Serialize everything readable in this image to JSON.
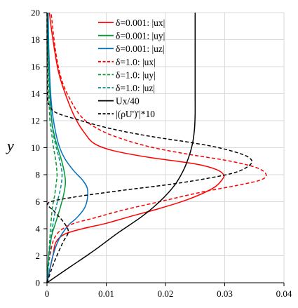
{
  "chart_data": {
    "type": "line",
    "xlabel": "",
    "ylabel": "y",
    "xlim": [
      0,
      0.04
    ],
    "ylim": [
      0,
      20
    ],
    "x_ticks": [
      "0",
      "0.01",
      "0.02",
      "0.03",
      "0.04"
    ],
    "y_ticks": [
      "0",
      "2",
      "4",
      "6",
      "8",
      "10",
      "12",
      "14",
      "16",
      "18",
      "20"
    ],
    "grid": true,
    "legend_position": "top-center",
    "series": [
      {
        "name": "δ=0.001: |ux|",
        "color": "#ff0000",
        "dash": "solid",
        "points": [
          [
            0,
            0
          ],
          [
            0.0005,
            1
          ],
          [
            0.001,
            2
          ],
          [
            0.0015,
            3
          ],
          [
            0.003,
            3.6
          ],
          [
            0.006,
            4.0
          ],
          [
            0.01,
            4.4
          ],
          [
            0.014,
            4.9
          ],
          [
            0.019,
            5.5
          ],
          [
            0.024,
            6.2
          ],
          [
            0.028,
            7.0
          ],
          [
            0.0295,
            7.6
          ],
          [
            0.0298,
            8.0
          ],
          [
            0.0285,
            8.4
          ],
          [
            0.025,
            8.8
          ],
          [
            0.017,
            9.3
          ],
          [
            0.011,
            9.8
          ],
          [
            0.008,
            10.3
          ],
          [
            0.0065,
            11.0
          ],
          [
            0.005,
            12.0
          ],
          [
            0.0035,
            13.5
          ],
          [
            0.002,
            15.5
          ],
          [
            0.001,
            18
          ],
          [
            0.0004,
            20
          ]
        ]
      },
      {
        "name": "δ=0.001: |uy|",
        "color": "#009933",
        "dash": "solid",
        "points": [
          [
            0,
            0
          ],
          [
            0.0003,
            2
          ],
          [
            0.0008,
            3.5
          ],
          [
            0.0015,
            4.5
          ],
          [
            0.0022,
            5.5
          ],
          [
            0.0028,
            6.5
          ],
          [
            0.0031,
            7.3
          ],
          [
            0.003,
            8
          ],
          [
            0.0025,
            9
          ],
          [
            0.0018,
            10
          ],
          [
            0.0012,
            11
          ],
          [
            0.0008,
            12
          ],
          [
            0.0005,
            14
          ],
          [
            0.0003,
            16
          ],
          [
            0.0002,
            18
          ],
          [
            0.0001,
            20
          ]
        ]
      },
      {
        "name": "δ=0.001: |uz|",
        "color": "#0070c0",
        "dash": "solid",
        "points": [
          [
            0,
            0
          ],
          [
            0.001,
            2
          ],
          [
            0.002,
            3.2
          ],
          [
            0.0035,
            4.2
          ],
          [
            0.005,
            4.8
          ],
          [
            0.0063,
            5.5
          ],
          [
            0.0068,
            6.2
          ],
          [
            0.0068,
            7.0
          ],
          [
            0.006,
            7.6
          ],
          [
            0.0045,
            8.3
          ],
          [
            0.003,
            9.2
          ],
          [
            0.002,
            10.2
          ],
          [
            0.0013,
            11.5
          ],
          [
            0.0008,
            13
          ],
          [
            0.0005,
            15
          ],
          [
            0.0003,
            17.5
          ],
          [
            0.0002,
            20
          ]
        ]
      },
      {
        "name": "δ=1.0: |ux|",
        "color": "#ff0000",
        "dash": "dashed",
        "points": [
          [
            0,
            0
          ],
          [
            0.0005,
            2
          ],
          [
            0.0015,
            3.5
          ],
          [
            0.004,
            4.3
          ],
          [
            0.008,
            4.8
          ],
          [
            0.013,
            5.4
          ],
          [
            0.019,
            6.0
          ],
          [
            0.026,
            6.7
          ],
          [
            0.032,
            7.2
          ],
          [
            0.036,
            7.6
          ],
          [
            0.037,
            8.0
          ],
          [
            0.0355,
            8.5
          ],
          [
            0.031,
            9.0
          ],
          [
            0.024,
            9.5
          ],
          [
            0.018,
            10.0
          ],
          [
            0.013,
            10.6
          ],
          [
            0.009,
            11.3
          ],
          [
            0.006,
            12.2
          ],
          [
            0.004,
            13.5
          ],
          [
            0.0025,
            15
          ],
          [
            0.0015,
            17
          ],
          [
            0.0007,
            20
          ]
        ]
      },
      {
        "name": "δ=1.0: |uy|",
        "color": "#009933",
        "dash": "dashed",
        "points": [
          [
            0,
            0
          ],
          [
            0.0003,
            2
          ],
          [
            0.0006,
            4
          ],
          [
            0.0009,
            5.5
          ],
          [
            0.0013,
            6.5
          ],
          [
            0.0016,
            7.5
          ],
          [
            0.0017,
            8
          ],
          [
            0.0015,
            9
          ],
          [
            0.0011,
            10
          ],
          [
            0.0008,
            11
          ],
          [
            0.0005,
            12
          ],
          [
            0.0003,
            14
          ],
          [
            0.0002,
            16
          ],
          [
            0.0001,
            18
          ],
          [
            0.0001,
            20
          ]
        ]
      },
      {
        "name": "δ=1.0: |uz|",
        "color": "#008b8b",
        "dash": "dashed",
        "points": [
          [
            0,
            0
          ],
          [
            0.0004,
            2
          ],
          [
            0.0009,
            4
          ],
          [
            0.0015,
            5.5
          ],
          [
            0.0022,
            6.8
          ],
          [
            0.0025,
            7.6
          ],
          [
            0.0025,
            8.3
          ],
          [
            0.002,
            9.3
          ],
          [
            0.0014,
            10.3
          ],
          [
            0.0009,
            11.5
          ],
          [
            0.0006,
            13
          ],
          [
            0.0004,
            15
          ],
          [
            0.0002,
            17.5
          ],
          [
            0.0001,
            20
          ]
        ]
      },
      {
        "name": "Ux/40",
        "color": "#000000",
        "dash": "solid",
        "points": [
          [
            0,
            0
          ],
          [
            0.004,
            1.2
          ],
          [
            0.008,
            2.4
          ],
          [
            0.012,
            3.7
          ],
          [
            0.016,
            4.9
          ],
          [
            0.019,
            6.0
          ],
          [
            0.0215,
            7.2
          ],
          [
            0.023,
            8.3
          ],
          [
            0.024,
            9.4
          ],
          [
            0.0246,
            10.4
          ],
          [
            0.0249,
            11.4
          ],
          [
            0.025,
            12.5
          ],
          [
            0.025,
            14
          ],
          [
            0.025,
            16
          ],
          [
            0.025,
            18
          ],
          [
            0.025,
            20
          ]
        ]
      },
      {
        "name": "|(ρU')'|*10",
        "color": "#000000",
        "dash": "dashed",
        "points": [
          [
            0,
            0
          ],
          [
            0.0012,
            1.5
          ],
          [
            0.0027,
            3.0
          ],
          [
            0.0035,
            3.6
          ],
          [
            0.0035,
            4.0
          ],
          [
            0.0026,
            4.6
          ],
          [
            0.0012,
            5.3
          ],
          [
            0.0002,
            5.9
          ],
          [
            0.004,
            6.3
          ],
          [
            0.012,
            6.8
          ],
          [
            0.021,
            7.3
          ],
          [
            0.028,
            7.8
          ],
          [
            0.032,
            8.2
          ],
          [
            0.0342,
            8.7
          ],
          [
            0.0345,
            9.1
          ],
          [
            0.033,
            9.5
          ],
          [
            0.029,
            10.0
          ],
          [
            0.024,
            10.4
          ],
          [
            0.018,
            10.8
          ],
          [
            0.013,
            11.2
          ],
          [
            0.009,
            11.6
          ],
          [
            0.005,
            12.1
          ],
          [
            0.0015,
            12.6
          ],
          [
            0.0005,
            13.1
          ],
          [
            0.0001,
            14
          ],
          [
            0,
            20
          ]
        ]
      }
    ]
  }
}
